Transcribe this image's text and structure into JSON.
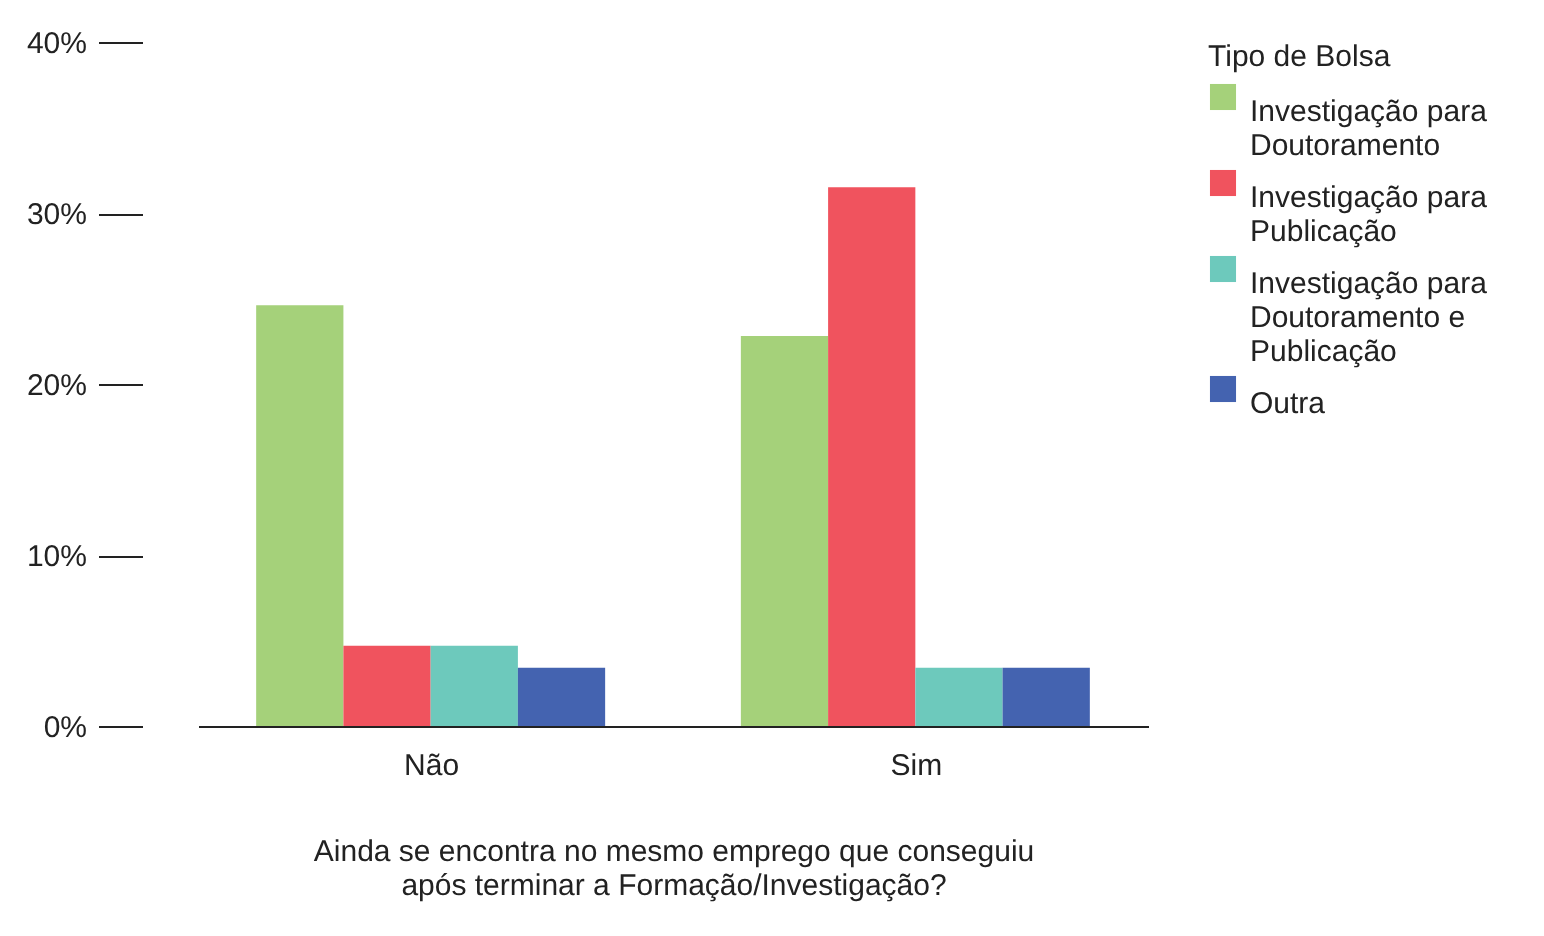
{
  "chart_data": {
    "type": "bar",
    "xlabel": "Ainda se encontra no mesmo emprego que conseguiu após terminar a Formação/Investigação?",
    "legend_title": "Tipo de Bolsa",
    "categories": [
      "Não",
      "Sim"
    ],
    "series": [
      {
        "name": "Investigação para Doutoramento",
        "color": "#a5d17a",
        "values": [
          24.6,
          22.8
        ]
      },
      {
        "name": "Investigação para Publicação",
        "color": "#f0535e",
        "values": [
          4.7,
          31.5
        ]
      },
      {
        "name": "Investigação para Doutoramento e Publicação",
        "color": "#6dc9bc",
        "values": [
          4.7,
          3.4
        ]
      },
      {
        "name": "Outra",
        "color": "#4463b0",
        "values": [
          3.4,
          3.4
        ]
      }
    ],
    "ylim": [
      0,
      40
    ],
    "yticks": [
      {
        "value": 0,
        "label": "0%"
      },
      {
        "value": 10,
        "label": "10%"
      },
      {
        "value": 20,
        "label": "20%"
      },
      {
        "value": 30,
        "label": "30%"
      },
      {
        "value": 40,
        "label": "40%"
      }
    ],
    "grid": false,
    "legend": "top right"
  }
}
